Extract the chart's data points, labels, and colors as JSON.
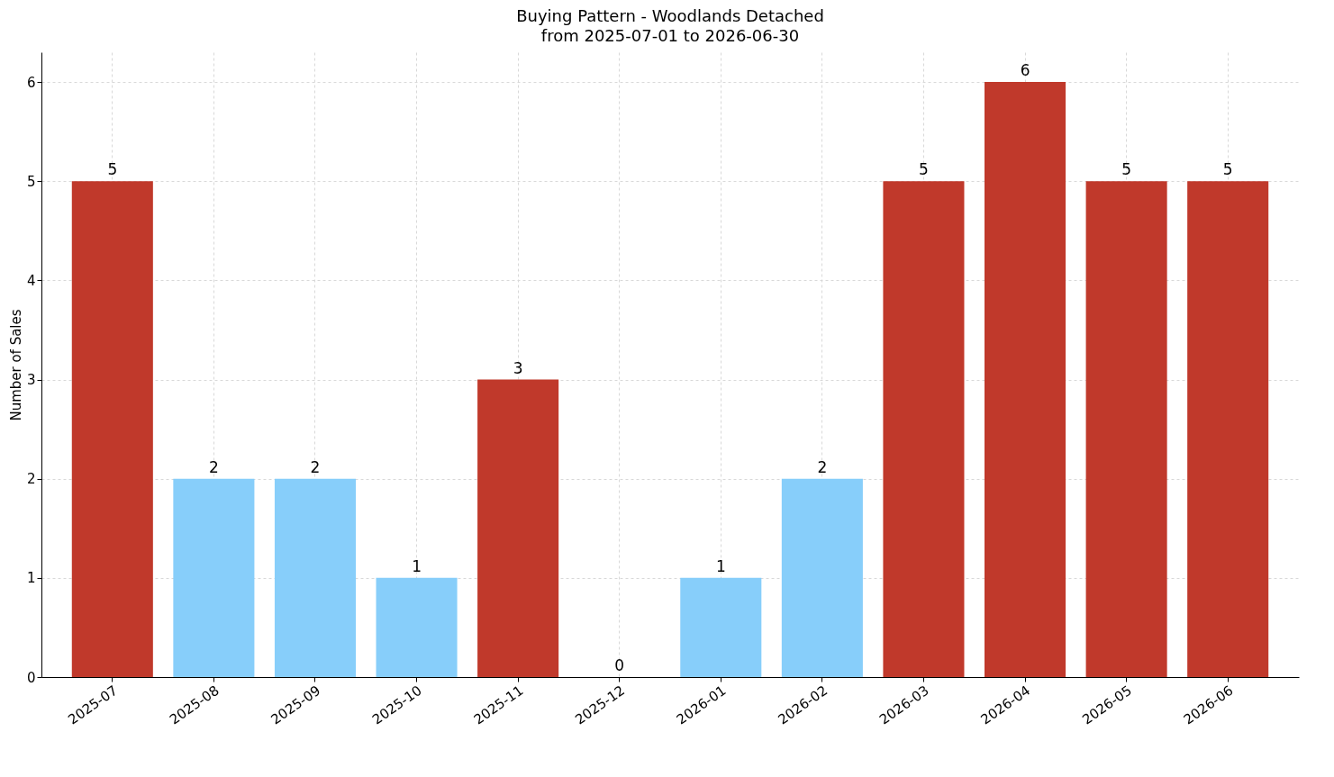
{
  "chart_data": {
    "type": "bar",
    "title": "Buying Pattern - Woodlands Detached",
    "subtitle": "from 2025-07-01 to 2026-06-30",
    "ylabel": "Number of Sales",
    "categories": [
      "2025-07",
      "2025-08",
      "2025-09",
      "2025-10",
      "2025-11",
      "2025-12",
      "2026-01",
      "2026-02",
      "2026-03",
      "2026-04",
      "2026-05",
      "2026-06"
    ],
    "values": [
      5,
      2,
      2,
      1,
      3,
      0,
      1,
      2,
      5,
      6,
      5,
      5
    ],
    "colors": [
      "#c0392b",
      "#87cefa",
      "#87cefa",
      "#87cefa",
      "#c0392b",
      "#87cefa",
      "#87cefa",
      "#87cefa",
      "#c0392b",
      "#c0392b",
      "#c0392b",
      "#c0392b"
    ],
    "ylim": [
      0,
      6.3
    ],
    "yticks": [
      0,
      1,
      2,
      3,
      4,
      5,
      6
    ],
    "grid": true,
    "data_labels": true
  }
}
